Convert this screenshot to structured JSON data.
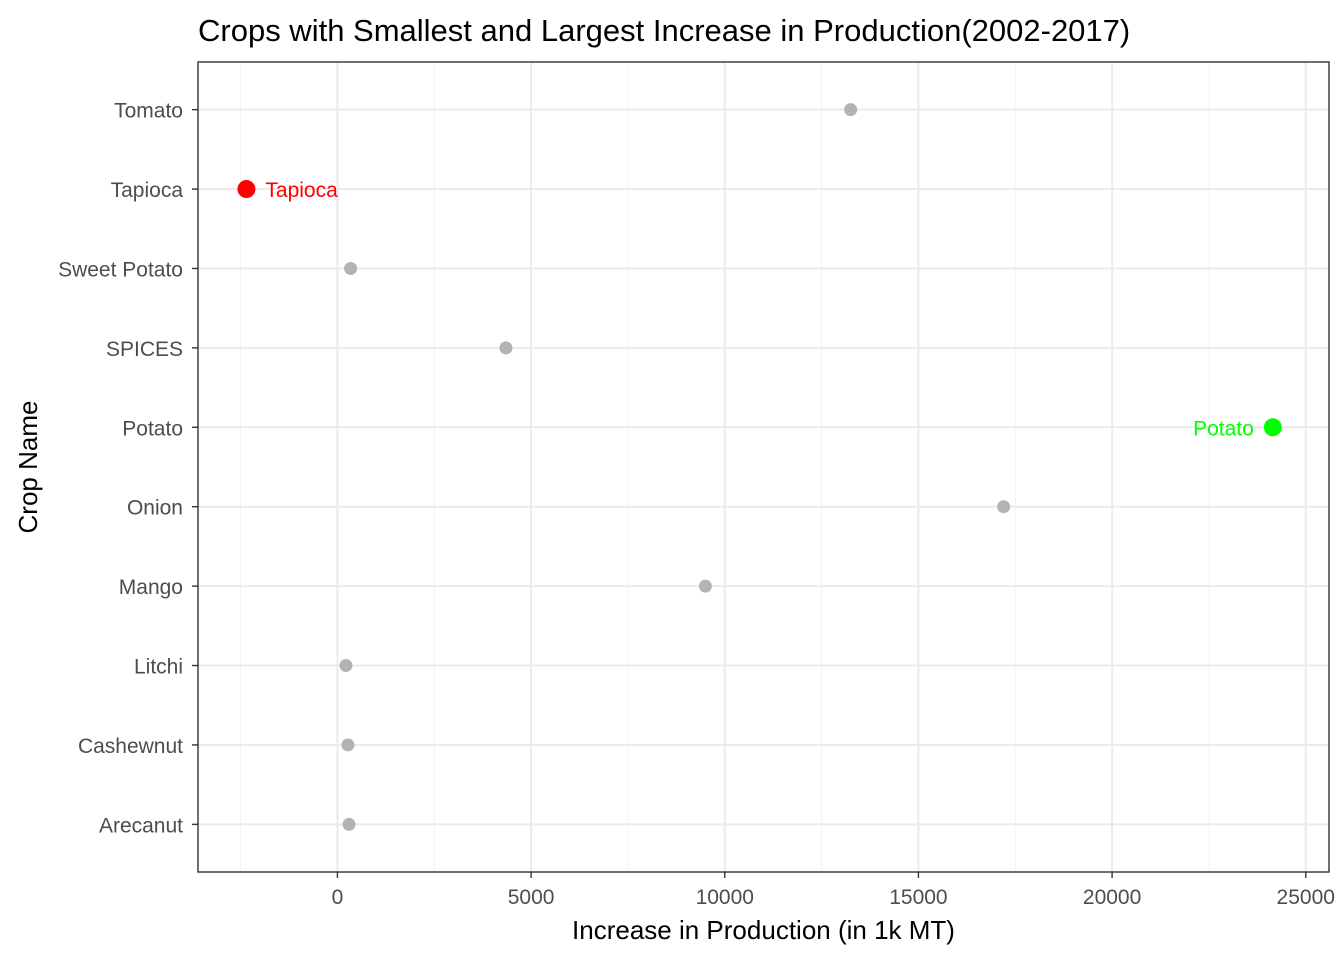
{
  "chart_data": {
    "type": "scatter",
    "title": "Crops with Smallest and Largest Increase in Production(2002-2017)",
    "xlabel": "Increase in Production (in 1k MT)",
    "ylabel": "Crop Name",
    "xlim": [
      -3600,
      25600
    ],
    "xticks": [
      0,
      5000,
      10000,
      15000,
      20000,
      25000
    ],
    "xtick_labels": [
      "0",
      "5000",
      "10000",
      "15000",
      "20000",
      "25000"
    ],
    "categories": [
      "Arecanut",
      "Cashewnut",
      "Litchi",
      "Mango",
      "Onion",
      "Potato",
      "SPICES",
      "Sweet Potato",
      "Tapioca",
      "Tomato"
    ],
    "values": [
      300,
      270,
      220,
      9500,
      17200,
      24150,
      4350,
      340,
      -2350,
      13250
    ],
    "highlights": [
      {
        "category": "Tapioca",
        "label": "Tapioca",
        "color": "#ff0000",
        "label_side": "right"
      },
      {
        "category": "Potato",
        "label": "Potato",
        "color": "#00ff00",
        "label_side": "left"
      }
    ],
    "default_point_color": "#b3b3b3",
    "grid": true,
    "theme": "bw"
  }
}
